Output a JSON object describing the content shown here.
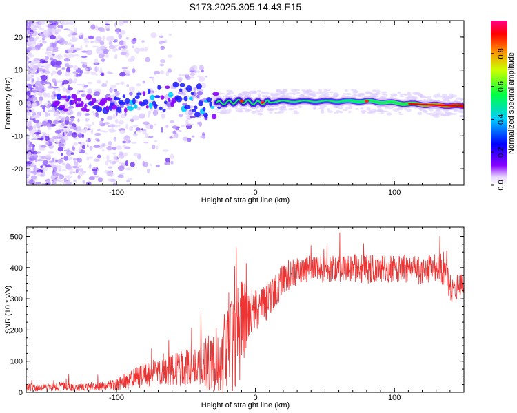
{
  "title": "S173.2025.305.14.43.E15",
  "colors": {
    "snr_line": "#ee3333",
    "axes": "#000000",
    "ridge_low": "#5500ee",
    "ridge_high": "#ff0000",
    "scatter": "#9966ee"
  },
  "chart_data": [
    {
      "type": "heatmap",
      "name": "spectrogram",
      "xlabel": "Height of straight line (km)",
      "ylabel": "Frequency (Hz)",
      "xlim": [
        -165,
        150
      ],
      "ylim": [
        -25,
        25
      ],
      "xticks": [
        -100,
        0,
        100
      ],
      "yticks": [
        -20,
        -10,
        0,
        10,
        20
      ],
      "xtick_labels": [
        "-100",
        "0",
        "100"
      ],
      "ytick_labels": [
        "-20",
        "-10",
        "0",
        "10",
        "20"
      ],
      "ridge": {
        "description": "narrow high-amplitude band near 0 Hz from about -30 km to 150 km; scattered low-amplitude blobs below -30 km",
        "x": [
          -145,
          -120,
          -100,
          -80,
          -60,
          -40,
          -25,
          -10,
          0,
          20,
          60,
          80,
          100,
          120,
          150
        ],
        "frequency": [
          0.5,
          0.0,
          -1.0,
          1.0,
          2.0,
          0.5,
          0.0,
          0.5,
          0.0,
          0.5,
          0.5,
          0.5,
          0.0,
          -0.5,
          -1.0
        ],
        "amplitude": [
          0.2,
          0.15,
          0.25,
          0.3,
          0.3,
          0.35,
          0.3,
          0.45,
          0.5,
          0.5,
          0.55,
          0.6,
          0.7,
          0.9,
          0.95
        ]
      },
      "colorbar": {
        "label": "Normalized spectral amplitude",
        "range": [
          0.0,
          1.0
        ],
        "ticks": [
          0.0,
          0.2,
          0.4,
          0.6,
          0.8
        ],
        "tick_labels": [
          "0.0",
          "0.2",
          "0.4",
          "0.6",
          "0.8"
        ],
        "colormap": "rainbow (white-purple-blue-cyan-green-yellow-red-magenta)"
      }
    },
    {
      "type": "line",
      "name": "snr",
      "xlabel": "Height of straight line (km)",
      "ylabel": "SNR (10 * v/v)",
      "xlim": [
        -165,
        150
      ],
      "ylim": [
        0,
        530
      ],
      "xticks": [
        -100,
        0,
        100
      ],
      "yticks": [
        0,
        100,
        200,
        300,
        400,
        500
      ],
      "xtick_labels": [
        "-100",
        "0",
        "100"
      ],
      "ytick_labels": [
        "0",
        "100",
        "200",
        "300",
        "400",
        "500"
      ],
      "x": [
        -165,
        -150,
        -140,
        -130,
        -120,
        -110,
        -100,
        -90,
        -80,
        -70,
        -60,
        -50,
        -40,
        -30,
        -20,
        -15,
        -10,
        -5,
        0,
        5,
        10,
        15,
        20,
        25,
        30,
        40,
        50,
        60,
        70,
        80,
        90,
        100,
        110,
        120,
        130,
        138,
        140,
        145,
        150
      ],
      "baseline": [
        15,
        15,
        20,
        15,
        18,
        20,
        25,
        40,
        55,
        60,
        70,
        80,
        90,
        100,
        130,
        160,
        200,
        250,
        260,
        270,
        300,
        330,
        360,
        380,
        390,
        395,
        395,
        400,
        400,
        395,
        395,
        395,
        395,
        390,
        395,
        400,
        320,
        340,
        350
      ],
      "noise": [
        12,
        12,
        15,
        12,
        12,
        15,
        20,
        30,
        40,
        45,
        50,
        60,
        70,
        100,
        140,
        160,
        160,
        90,
        70,
        70,
        60,
        55,
        50,
        50,
        45,
        45,
        45,
        45,
        45,
        50,
        45,
        45,
        45,
        45,
        50,
        60,
        40,
        40,
        40
      ]
    }
  ]
}
